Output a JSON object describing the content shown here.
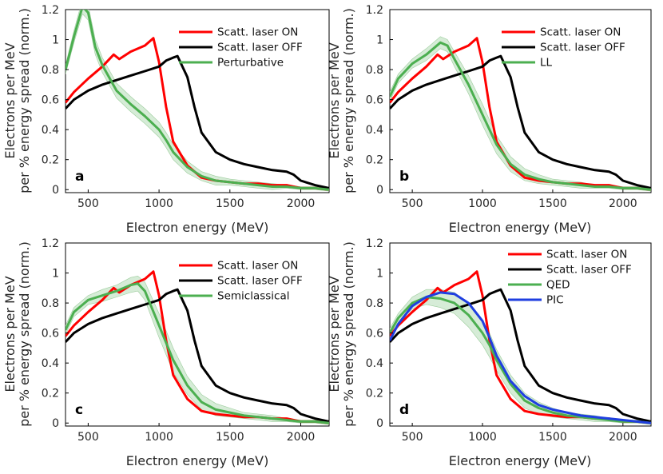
{
  "chart_data": [
    {
      "type": "line",
      "panel_label": "a",
      "xlabel": "Electron energy (MeV)",
      "ylabel_line1": "Electrons per MeV",
      "ylabel_line2": "per % energy spread (norm.)",
      "xlim": [
        340,
        2200
      ],
      "ylim": [
        -0.02,
        1.2
      ],
      "xticks": [
        500,
        1000,
        1500,
        2000
      ],
      "yticks": [
        0,
        0.2,
        0.4,
        0.6,
        0.8,
        1,
        1.2
      ],
      "ytick_labels": [
        "0",
        "0.2",
        "0.4",
        "0.6",
        "0.8",
        "1",
        "1.2"
      ],
      "legend_position": "top-right",
      "series": [
        {
          "name": "Scatt. laser ON",
          "color": "#ff0000",
          "x": [
            340,
            400,
            500,
            600,
            680,
            720,
            800,
            900,
            960,
            1000,
            1050,
            1100,
            1200,
            1300,
            1400,
            1500,
            1600,
            1700,
            1800,
            1900,
            2000,
            2100,
            2200
          ],
          "y": [
            0.58,
            0.65,
            0.74,
            0.82,
            0.9,
            0.87,
            0.92,
            0.96,
            1.01,
            0.85,
            0.55,
            0.32,
            0.16,
            0.08,
            0.06,
            0.05,
            0.04,
            0.04,
            0.03,
            0.03,
            0.01,
            0.01,
            0.0
          ]
        },
        {
          "name": "Scatt. laser OFF",
          "color": "#000000",
          "x": [
            340,
            400,
            500,
            600,
            700,
            800,
            900,
            1000,
            1050,
            1100,
            1130,
            1200,
            1250,
            1300,
            1400,
            1500,
            1600,
            1700,
            1800,
            1900,
            1950,
            2000,
            2100,
            2200
          ],
          "y": [
            0.54,
            0.6,
            0.66,
            0.7,
            0.73,
            0.76,
            0.79,
            0.82,
            0.86,
            0.88,
            0.89,
            0.75,
            0.55,
            0.38,
            0.25,
            0.2,
            0.17,
            0.15,
            0.13,
            0.12,
            0.1,
            0.06,
            0.03,
            0.01
          ]
        },
        {
          "name": "Perturbative",
          "color": "#4caf50",
          "band_color": "#c8e6c9",
          "x": [
            340,
            400,
            460,
            500,
            550,
            600,
            700,
            800,
            900,
            1000,
            1050,
            1100,
            1200,
            1300,
            1400,
            1500,
            1600,
            1700,
            1800,
            1900,
            2000,
            2100,
            2200
          ],
          "y": [
            0.8,
            1.02,
            1.22,
            1.18,
            0.95,
            0.83,
            0.66,
            0.57,
            0.49,
            0.4,
            0.33,
            0.25,
            0.15,
            0.09,
            0.06,
            0.05,
            0.04,
            0.03,
            0.02,
            0.02,
            0.01,
            0.01,
            0.0
          ],
          "band_halfwidth": [
            0.03,
            0.04,
            0.05,
            0.05,
            0.05,
            0.05,
            0.05,
            0.05,
            0.05,
            0.05,
            0.05,
            0.05,
            0.04,
            0.03,
            0.03,
            0.02,
            0.02,
            0.02,
            0.02,
            0.01,
            0.01,
            0.01,
            0.01
          ]
        }
      ]
    },
    {
      "type": "line",
      "panel_label": "b",
      "xlabel": "Electron energy (MeV)",
      "ylabel_line1": "Electrons per MeV",
      "ylabel_line2": "per % energy spread (norm.)",
      "xlim": [
        340,
        2200
      ],
      "ylim": [
        -0.02,
        1.2
      ],
      "xticks": [
        500,
        1000,
        1500,
        2000
      ],
      "yticks": [
        0,
        0.2,
        0.4,
        0.6,
        0.8,
        1,
        1.2
      ],
      "ytick_labels": [
        "0",
        "0.2",
        "0.4",
        "0.6",
        "0.8",
        "1",
        "1.2"
      ],
      "legend_position": "top-right",
      "series": [
        {
          "name": "Scatt. laser ON",
          "color": "#ff0000",
          "x": [
            340,
            400,
            500,
            600,
            680,
            720,
            800,
            900,
            960,
            1000,
            1050,
            1100,
            1200,
            1300,
            1400,
            1500,
            1600,
            1700,
            1800,
            1900,
            2000,
            2100,
            2200
          ],
          "y": [
            0.58,
            0.65,
            0.74,
            0.82,
            0.9,
            0.87,
            0.92,
            0.96,
            1.01,
            0.85,
            0.55,
            0.32,
            0.16,
            0.08,
            0.06,
            0.05,
            0.04,
            0.04,
            0.03,
            0.03,
            0.01,
            0.01,
            0.0
          ]
        },
        {
          "name": "Scatt. laser OFF",
          "color": "#000000",
          "x": [
            340,
            400,
            500,
            600,
            700,
            800,
            900,
            1000,
            1050,
            1100,
            1130,
            1200,
            1250,
            1300,
            1400,
            1500,
            1600,
            1700,
            1800,
            1900,
            1950,
            2000,
            2100,
            2200
          ],
          "y": [
            0.54,
            0.6,
            0.66,
            0.7,
            0.73,
            0.76,
            0.79,
            0.82,
            0.86,
            0.88,
            0.89,
            0.75,
            0.55,
            0.38,
            0.25,
            0.2,
            0.17,
            0.15,
            0.13,
            0.12,
            0.1,
            0.06,
            0.03,
            0.01
          ]
        },
        {
          "name": "LL",
          "color": "#4caf50",
          "band_color": "#c8e6c9",
          "x": [
            340,
            400,
            500,
            600,
            700,
            750,
            800,
            900,
            1000,
            1100,
            1200,
            1300,
            1400,
            1500,
            1600,
            1700,
            1800,
            1900,
            2000,
            2100,
            2200
          ],
          "y": [
            0.62,
            0.74,
            0.84,
            0.9,
            0.98,
            0.96,
            0.87,
            0.7,
            0.5,
            0.3,
            0.17,
            0.1,
            0.07,
            0.05,
            0.04,
            0.03,
            0.02,
            0.02,
            0.01,
            0.01,
            0.0
          ],
          "band_halfwidth": [
            0.03,
            0.03,
            0.03,
            0.04,
            0.04,
            0.04,
            0.05,
            0.06,
            0.07,
            0.06,
            0.05,
            0.04,
            0.03,
            0.02,
            0.02,
            0.02,
            0.01,
            0.01,
            0.01,
            0.01,
            0.01
          ]
        }
      ]
    },
    {
      "type": "line",
      "panel_label": "c",
      "xlabel": "Electron energy (MeV)",
      "ylabel_line1": "Electrons per MeV",
      "ylabel_line2": "per % energy spread (norm.)",
      "xlim": [
        340,
        2200
      ],
      "ylim": [
        -0.02,
        1.2
      ],
      "xticks": [
        500,
        1000,
        1500,
        2000
      ],
      "yticks": [
        0,
        0.2,
        0.4,
        0.6,
        0.8,
        1,
        1.2
      ],
      "ytick_labels": [
        "0",
        "0.2",
        "0.4",
        "0.6",
        "0.8",
        "1",
        "1.2"
      ],
      "legend_position": "top-right",
      "series": [
        {
          "name": "Scatt. laser ON",
          "color": "#ff0000",
          "x": [
            340,
            400,
            500,
            600,
            680,
            720,
            800,
            900,
            960,
            1000,
            1050,
            1100,
            1200,
            1300,
            1400,
            1500,
            1600,
            1700,
            1800,
            1900,
            2000,
            2100,
            2200
          ],
          "y": [
            0.58,
            0.65,
            0.74,
            0.82,
            0.9,
            0.87,
            0.92,
            0.96,
            1.01,
            0.85,
            0.55,
            0.32,
            0.16,
            0.08,
            0.06,
            0.05,
            0.04,
            0.04,
            0.03,
            0.03,
            0.01,
            0.01,
            0.0
          ]
        },
        {
          "name": "Scatt. laser OFF",
          "color": "#000000",
          "x": [
            340,
            400,
            500,
            600,
            700,
            800,
            900,
            1000,
            1050,
            1100,
            1130,
            1200,
            1250,
            1300,
            1400,
            1500,
            1600,
            1700,
            1800,
            1900,
            1950,
            2000,
            2100,
            2200
          ],
          "y": [
            0.54,
            0.6,
            0.66,
            0.7,
            0.73,
            0.76,
            0.79,
            0.82,
            0.86,
            0.88,
            0.89,
            0.75,
            0.55,
            0.38,
            0.25,
            0.2,
            0.17,
            0.15,
            0.13,
            0.12,
            0.1,
            0.06,
            0.03,
            0.01
          ]
        },
        {
          "name": "Semiclassical",
          "color": "#4caf50",
          "band_color": "#c8e6c9",
          "x": [
            340,
            400,
            500,
            600,
            700,
            800,
            850,
            900,
            1000,
            1100,
            1200,
            1300,
            1400,
            1500,
            1600,
            1700,
            1800,
            1900,
            2000,
            2100,
            2200
          ],
          "y": [
            0.62,
            0.74,
            0.82,
            0.85,
            0.88,
            0.92,
            0.93,
            0.88,
            0.65,
            0.42,
            0.25,
            0.14,
            0.09,
            0.07,
            0.05,
            0.04,
            0.03,
            0.02,
            0.01,
            0.01,
            0.0
          ],
          "band_halfwidth": [
            0.03,
            0.03,
            0.03,
            0.04,
            0.04,
            0.05,
            0.05,
            0.06,
            0.08,
            0.08,
            0.06,
            0.05,
            0.04,
            0.03,
            0.02,
            0.02,
            0.02,
            0.01,
            0.01,
            0.01,
            0.01
          ]
        }
      ]
    },
    {
      "type": "line",
      "panel_label": "d",
      "xlabel": "Electron energy (MeV)",
      "ylabel_line1": "Electrons per MeV",
      "ylabel_line2": "per % energy spread (norm.)",
      "xlim": [
        340,
        2200
      ],
      "ylim": [
        -0.02,
        1.2
      ],
      "xticks": [
        500,
        1000,
        1500,
        2000
      ],
      "yticks": [
        0,
        0.2,
        0.4,
        0.6,
        0.8,
        1,
        1.2
      ],
      "ytick_labels": [
        "0",
        "0.2",
        "0.4",
        "0.6",
        "0.8",
        "1",
        "1.2"
      ],
      "legend_position": "top-right",
      "series": [
        {
          "name": "Scatt. laser ON",
          "color": "#ff0000",
          "x": [
            340,
            400,
            500,
            600,
            680,
            720,
            800,
            900,
            960,
            1000,
            1050,
            1100,
            1200,
            1300,
            1400,
            1500,
            1600,
            1700,
            1800,
            1900,
            2000,
            2100,
            2200
          ],
          "y": [
            0.58,
            0.65,
            0.74,
            0.82,
            0.9,
            0.87,
            0.92,
            0.96,
            1.01,
            0.85,
            0.55,
            0.32,
            0.16,
            0.08,
            0.06,
            0.05,
            0.04,
            0.04,
            0.03,
            0.03,
            0.01,
            0.01,
            0.0
          ]
        },
        {
          "name": "Scatt. laser OFF",
          "color": "#000000",
          "x": [
            340,
            400,
            500,
            600,
            700,
            800,
            900,
            1000,
            1050,
            1100,
            1130,
            1200,
            1250,
            1300,
            1400,
            1500,
            1600,
            1700,
            1800,
            1900,
            1950,
            2000,
            2100,
            2200
          ],
          "y": [
            0.54,
            0.6,
            0.66,
            0.7,
            0.73,
            0.76,
            0.79,
            0.82,
            0.86,
            0.88,
            0.89,
            0.75,
            0.55,
            0.38,
            0.25,
            0.2,
            0.17,
            0.15,
            0.13,
            0.12,
            0.1,
            0.06,
            0.03,
            0.01
          ]
        },
        {
          "name": "QED",
          "color": "#4caf50",
          "band_color": "#c8e6c9",
          "x": [
            340,
            400,
            500,
            600,
            700,
            800,
            900,
            1000,
            1050,
            1100,
            1200,
            1300,
            1400,
            1500,
            1600,
            1700,
            1800,
            1900,
            2000,
            2100,
            2200
          ],
          "y": [
            0.6,
            0.7,
            0.8,
            0.84,
            0.83,
            0.8,
            0.72,
            0.6,
            0.52,
            0.42,
            0.26,
            0.15,
            0.1,
            0.07,
            0.05,
            0.04,
            0.03,
            0.02,
            0.01,
            0.01,
            0.0
          ],
          "band_halfwidth": [
            0.03,
            0.03,
            0.04,
            0.05,
            0.06,
            0.07,
            0.08,
            0.08,
            0.08,
            0.07,
            0.06,
            0.05,
            0.04,
            0.03,
            0.02,
            0.02,
            0.02,
            0.01,
            0.01,
            0.01,
            0.01
          ]
        },
        {
          "name": "PIC",
          "color": "#1f3fe0",
          "x": [
            340,
            400,
            500,
            600,
            700,
            800,
            900,
            1000,
            1050,
            1100,
            1200,
            1300,
            1400,
            1500,
            1600,
            1700,
            1800,
            1900,
            2000,
            2100,
            2200
          ],
          "y": [
            0.55,
            0.66,
            0.78,
            0.84,
            0.87,
            0.86,
            0.8,
            0.68,
            0.57,
            0.45,
            0.28,
            0.18,
            0.12,
            0.09,
            0.07,
            0.05,
            0.04,
            0.03,
            0.02,
            0.01,
            0.0
          ]
        }
      ]
    }
  ]
}
